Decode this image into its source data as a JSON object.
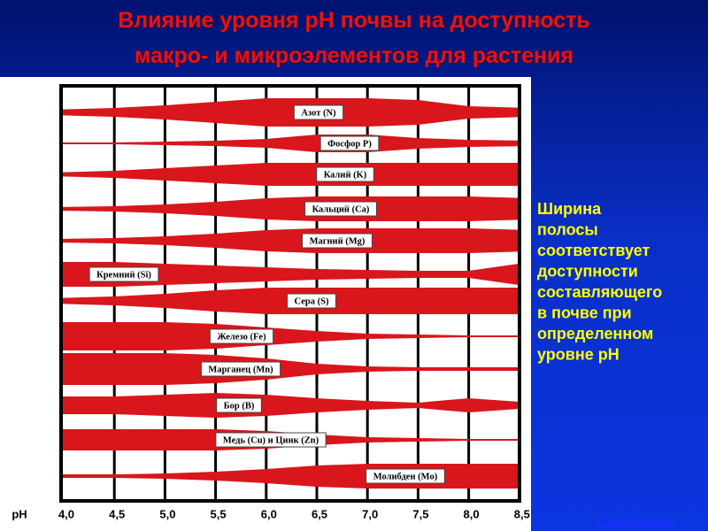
{
  "title": [
    "Влияние уровня pH почвы на доступность",
    "макро- и микроэлементов для растения"
  ],
  "chart": {
    "nutrients": [
      "Азот (N)",
      "Фосфор  P)",
      "Калий (K)",
      "Кальций (Ca)",
      "Магний (Mg)",
      "Кремний (Si)",
      "Сера (S)",
      "Железо (Fe)",
      "Марганец (Mn)",
      "Бор (B)",
      "Медь (Cu) и Цинк (Zn)",
      "Молибден (Mo)"
    ],
    "axis_label": "pH",
    "ticks": [
      "4,0",
      "4,5",
      "5,0",
      "5,5",
      "6,0",
      "6,5",
      "7,0",
      "7,5",
      "8,0",
      "8,5"
    ]
  },
  "note": [
    " Ширина",
    "полосы",
    "соответствует",
    "доступности",
    "составляющего",
    "в почве при",
    "определенном",
    "уровне pH"
  ],
  "link": "Содержание"
}
